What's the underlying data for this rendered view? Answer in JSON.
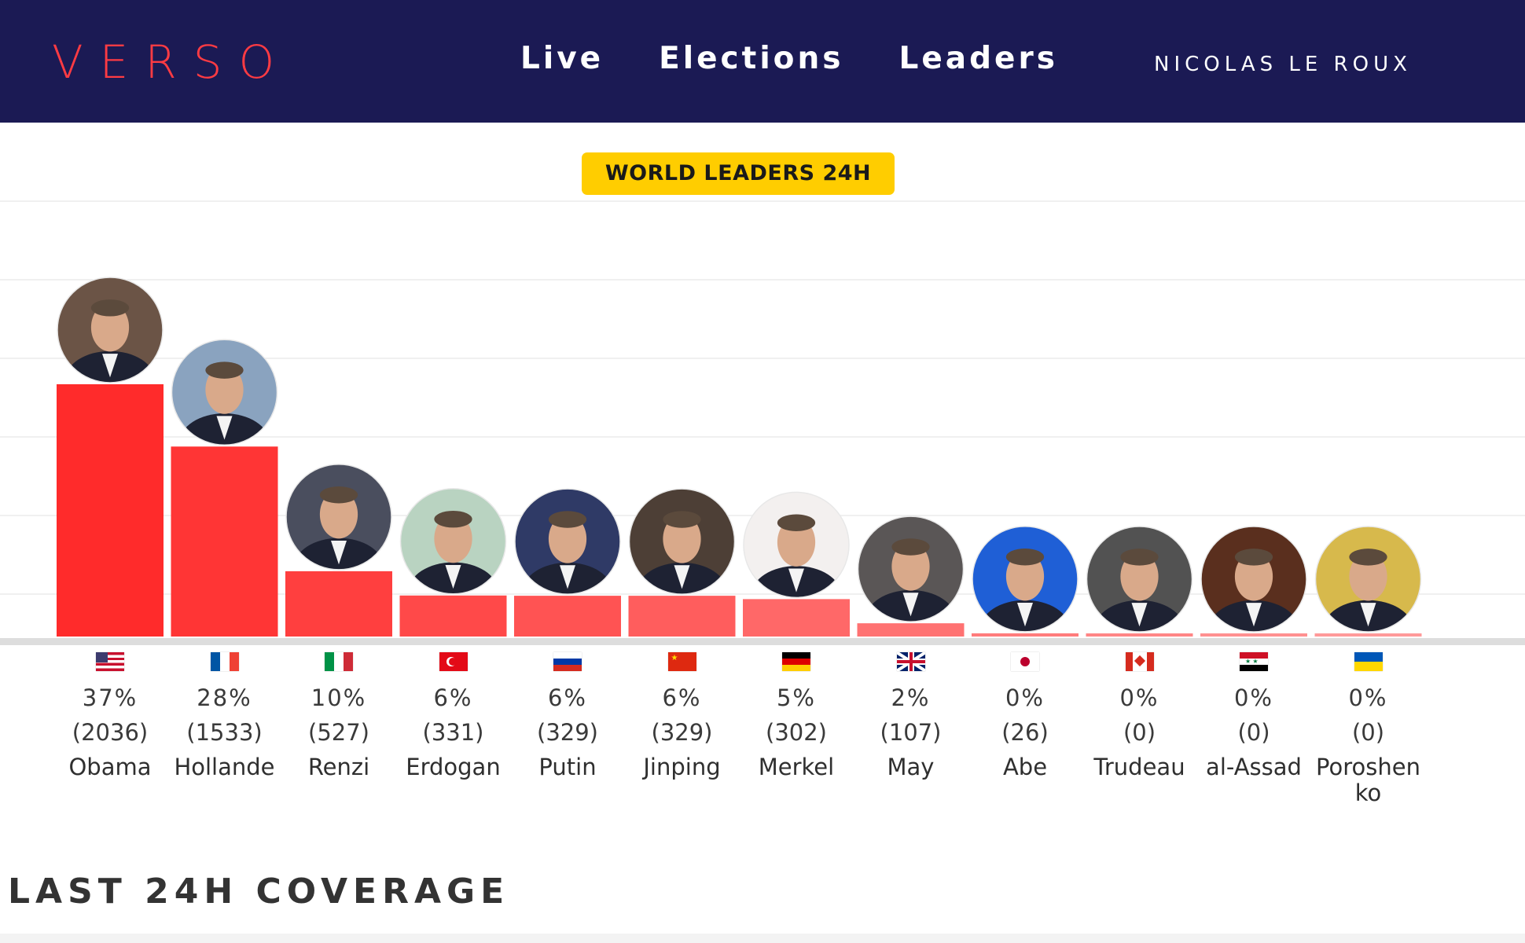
{
  "header": {
    "logo": "VERSO",
    "nav": [
      "Live",
      "Elections",
      "Leaders"
    ],
    "user": "NICOLAS LE ROUX"
  },
  "chart_data": {
    "type": "bar",
    "title": "WORLD LEADERS 24H",
    "categories": [
      "Obama",
      "Hollande",
      "Renzi",
      "Erdogan",
      "Putin",
      "Jinping",
      "Merkel",
      "May",
      "Abe",
      "Trudeau",
      "al-Assad",
      "Poroshenko"
    ],
    "values": [
      2036,
      1533,
      527,
      331,
      329,
      329,
      302,
      107,
      26,
      0,
      0,
      0
    ],
    "percent_labels": [
      "37%",
      "28%",
      "10%",
      "6%",
      "6%",
      "6%",
      "5%",
      "2%",
      "0%",
      "0%",
      "0%",
      "0%"
    ],
    "count_labels": [
      "(2036)",
      "(1533)",
      "(527)",
      "(331)",
      "(329)",
      "(329)",
      "(302)",
      "(107)",
      "(26)",
      "(0)",
      "(0)",
      "(0)"
    ],
    "flags": [
      "us-flag",
      "fr-flag",
      "it-flag",
      "tr-flag",
      "ru-flag",
      "cn-flag",
      "de-flag",
      "gb-flag",
      "jp-flag",
      "ca-flag",
      "sy-flag",
      "ua-flag"
    ],
    "ylim": [
      0,
      2600
    ],
    "grid": true,
    "legend": "none"
  },
  "section": {
    "title": "LAST 24H COVERAGE"
  },
  "colors": {
    "header_bg": "#1b1a54",
    "logo": "#ff3b43",
    "badge": "#ffcd00",
    "bar_strong": "#ff2b2b",
    "bar_light": "#ff9a9a",
    "avatar_fills": [
      "#6b5446",
      "#8aa3bf",
      "#4a4e5e",
      "#b9d3c1",
      "#2f3a66",
      "#4d3f36",
      "#f3f0ef",
      "#5a5656",
      "#1f5fd6",
      "#525252",
      "#5a2f1e",
      "#d7b94c"
    ]
  }
}
